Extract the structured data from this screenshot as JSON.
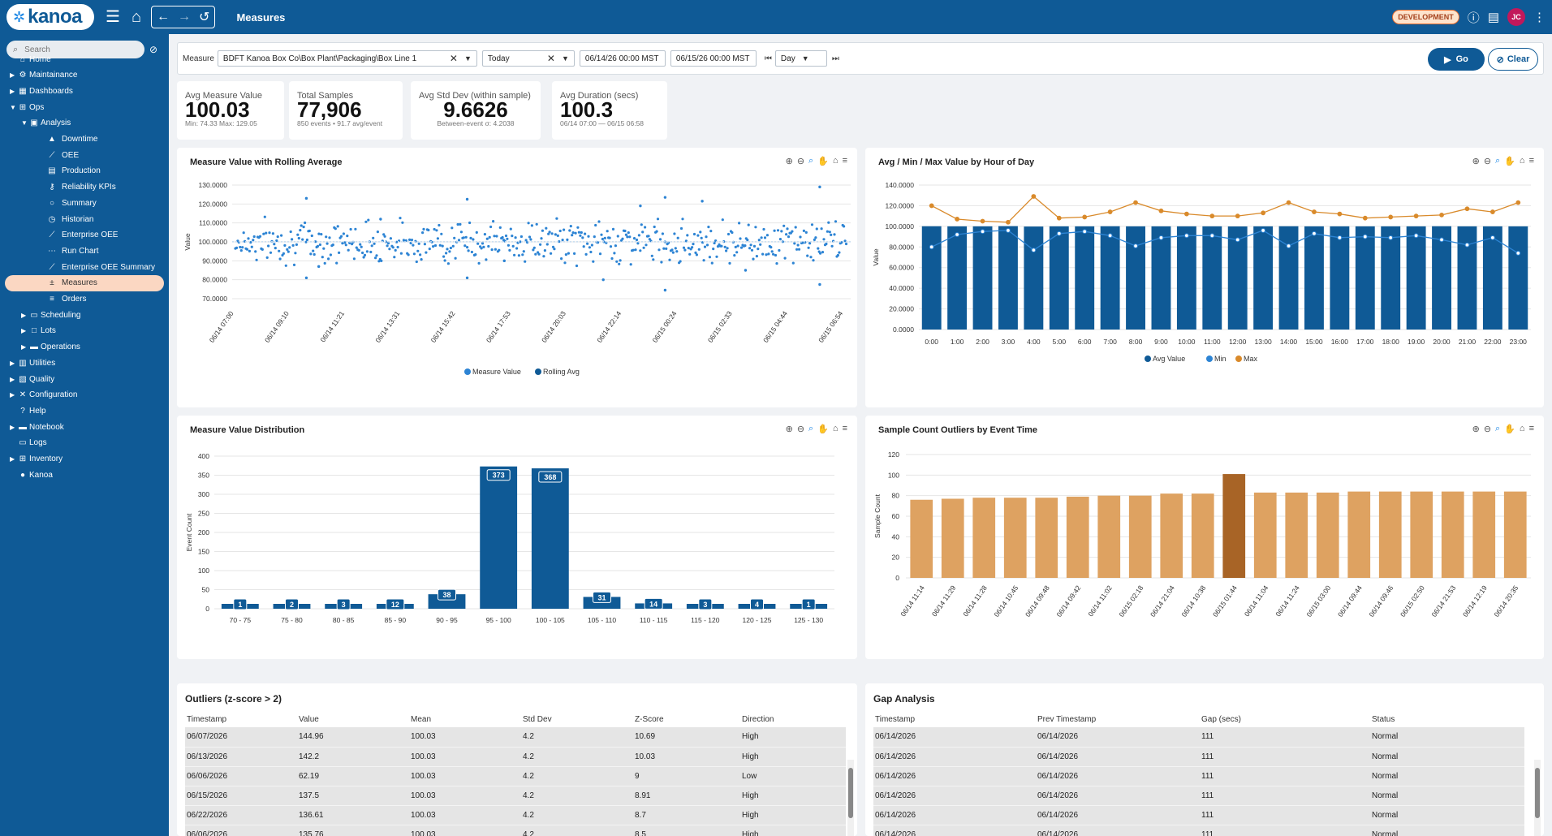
{
  "app": {
    "logo_text": "kanoa",
    "page_title": "Measures",
    "env_badge": "DEVELOPMENT",
    "user_initials": "JC"
  },
  "colors": {
    "primary": "#0f5a96",
    "accent": "#e36b2f",
    "active_nav": "#fbd7c2",
    "bar_orange": "#dea261",
    "bar_orange_dark": "#a86426",
    "scatter_blue": "#2d84d4"
  },
  "sidebar": {
    "search_placeholder": "Search",
    "items": [
      {
        "label": "Home",
        "icon": "home-icon",
        "level": 0,
        "caret": false
      },
      {
        "label": "Maintainance",
        "icon": "gear-icon",
        "level": 0,
        "caret": true
      },
      {
        "label": "Dashboards",
        "icon": "dashboard-icon",
        "level": 0,
        "caret": true
      },
      {
        "label": "Ops",
        "icon": "ops-icon",
        "level": 0,
        "caret": true,
        "open": true
      },
      {
        "label": "Analysis",
        "icon": "analysis-icon",
        "level": 1,
        "caret": true,
        "open": true
      },
      {
        "label": "Downtime",
        "icon": "warning-icon",
        "level": 2,
        "caret": false
      },
      {
        "label": "OEE",
        "icon": "line-chart-icon",
        "level": 2,
        "caret": false
      },
      {
        "label": "Production",
        "icon": "production-icon",
        "level": 2,
        "caret": false
      },
      {
        "label": "Reliability KPIs",
        "icon": "key-icon",
        "level": 2,
        "caret": false
      },
      {
        "label": "Summary",
        "icon": "circle-icon",
        "level": 2,
        "caret": false
      },
      {
        "label": "Historian",
        "icon": "clock-icon",
        "level": 2,
        "caret": false
      },
      {
        "label": "Enterprise OEE",
        "icon": "line-chart-icon",
        "level": 2,
        "caret": false
      },
      {
        "label": "Run Chart",
        "icon": "dots-icon",
        "level": 2,
        "caret": false
      },
      {
        "label": "Enterprise OEE Summary",
        "icon": "line-chart-icon",
        "level": 2,
        "caret": false
      },
      {
        "label": "Measures",
        "icon": "plus-minus-icon",
        "level": 2,
        "caret": false,
        "active": true
      },
      {
        "label": "Orders",
        "icon": "orders-icon",
        "level": 2,
        "caret": false
      },
      {
        "label": "Scheduling",
        "icon": "calendar-icon",
        "level": 1,
        "caret": true
      },
      {
        "label": "Lots",
        "icon": "box-icon",
        "level": 1,
        "caret": true
      },
      {
        "label": "Operations",
        "icon": "folder-icon",
        "level": 1,
        "caret": true
      },
      {
        "label": "Utilities",
        "icon": "utilities-icon",
        "level": 0,
        "caret": true
      },
      {
        "label": "Quality",
        "icon": "quality-icon",
        "level": 0,
        "caret": true
      },
      {
        "label": "Configuration",
        "icon": "wrench-icon",
        "level": 0,
        "caret": true
      },
      {
        "label": "Help",
        "icon": "help-icon",
        "level": 0,
        "caret": false
      },
      {
        "label": "Notebook",
        "icon": "folder-icon",
        "level": 0,
        "caret": true
      },
      {
        "label": "Logs",
        "icon": "logs-icon",
        "level": 0,
        "caret": false
      },
      {
        "label": "Inventory",
        "icon": "grid-icon",
        "level": 0,
        "caret": true
      },
      {
        "label": "Kanoa",
        "icon": "globe-icon",
        "level": 0,
        "caret": false
      }
    ]
  },
  "filters": {
    "measure_label": "Measure",
    "measure_value": "BDFT Kanoa Box Co\\Box Plant\\Packaging\\Box Line 1",
    "range_value": "Today",
    "start": "06/14/26 00:00 MST",
    "end": "06/15/26 00:00 MST",
    "interval": "Day",
    "go_label": "Go",
    "clear_label": "Clear"
  },
  "kpis": [
    {
      "label": "Avg Measure Value",
      "value": "100.03",
      "sub": "Min: 74.33 Max: 129.05"
    },
    {
      "label": "Total Samples",
      "value": "77,906",
      "sub": "850 events • 91.7 avg/event"
    },
    {
      "label": "Avg Std Dev (within sample)",
      "value": "9.6626",
      "sub": "Between-event σ: 4.2038"
    },
    {
      "label": "Avg Duration (secs)",
      "value": "100.3",
      "sub": "06/14 07:00 — 06/15 06:58"
    }
  ],
  "charts": [
    {
      "title": "Measure Value with Rolling Average",
      "chart_data": {
        "type": "scatter",
        "ylabel": "Value",
        "ylim": [
          70,
          130
        ],
        "yticks": [
          "130.0000",
          "120.0000",
          "110.0000",
          "100.0000",
          "90.0000",
          "80.0000",
          "70.0000"
        ],
        "x_ticks": [
          "06/14 07:00",
          "06/14 09:10",
          "06/14 11:21",
          "06/14 13:31",
          "06/14 15:42",
          "06/14 17:53",
          "06/14 20:03",
          "06/14 22:14",
          "06/15 00:24",
          "06/15 02:33",
          "06/15 04:44",
          "06/15 06:54"
        ],
        "series": [
          {
            "name": "Measure Value",
            "mean": 100.03,
            "std": 4.2
          },
          {
            "name": "Rolling Avg",
            "value": 100.03
          }
        ],
        "outliers": [
          {
            "x": 0.12,
            "y": 123
          },
          {
            "x": 0.12,
            "y": 81
          },
          {
            "x": 0.24,
            "y": 112
          },
          {
            "x": 0.38,
            "y": 122.5
          },
          {
            "x": 0.38,
            "y": 81
          },
          {
            "x": 0.66,
            "y": 119
          },
          {
            "x": 0.7,
            "y": 123.5
          },
          {
            "x": 0.7,
            "y": 74.5
          },
          {
            "x": 0.76,
            "y": 121.5
          },
          {
            "x": 0.6,
            "y": 80
          },
          {
            "x": 0.95,
            "y": 129
          },
          {
            "x": 0.95,
            "y": 77.5
          },
          {
            "x": 0.14,
            "y": 87
          },
          {
            "x": 0.44,
            "y": 90
          },
          {
            "x": 0.83,
            "y": 85
          }
        ],
        "legend": "bottom"
      }
    },
    {
      "title": "Avg / Min / Max Value by Hour of Day",
      "chart_data": {
        "type": "bar",
        "ylabel": "Value",
        "ylim": [
          0,
          140
        ],
        "yticks": [
          "140.0000",
          "120.0000",
          "100.0000",
          "80.0000",
          "60.0000",
          "40.0000",
          "20.0000",
          "0.0000"
        ],
        "categories": [
          "0:00",
          "1:00",
          "2:00",
          "3:00",
          "4:00",
          "5:00",
          "6:00",
          "7:00",
          "8:00",
          "9:00",
          "10:00",
          "11:00",
          "12:00",
          "13:00",
          "14:00",
          "15:00",
          "16:00",
          "17:00",
          "18:00",
          "19:00",
          "20:00",
          "21:00",
          "22:00",
          "23:00"
        ],
        "series": [
          {
            "name": "Avg Value",
            "values": [
              100.1,
              100,
              100,
              100.2,
              99.8,
              100,
              100,
              100.1,
              100,
              100,
              100,
              100,
              99.9,
              100,
              100.1,
              100,
              100,
              100,
              100,
              100,
              100.1,
              100,
              100,
              100
            ]
          },
          {
            "name": "Min",
            "values": [
              80,
              92,
              95,
              96,
              77,
              93,
              95,
              91,
              81,
              89,
              91,
              91,
              87,
              96,
              81,
              93,
              89,
              90,
              89,
              91,
              87,
              82,
              89,
              74
            ]
          },
          {
            "name": "Max",
            "values": [
              120,
              107,
              105,
              104,
              129,
              108,
              109,
              114,
              123,
              115,
              112,
              110,
              110,
              113,
              123,
              114,
              112,
              108,
              109,
              110,
              111,
              117,
              114,
              123
            ]
          }
        ],
        "legend": "bottom"
      }
    },
    {
      "title": "Measure Value Distribution",
      "chart_data": {
        "type": "bar",
        "ylabel": "Event Count",
        "ylim": [
          0,
          400
        ],
        "yticks": [
          "400",
          "350",
          "300",
          "250",
          "200",
          "150",
          "100",
          "50",
          "0"
        ],
        "categories": [
          "70 - 75",
          "75 - 80",
          "80 - 85",
          "85 - 90",
          "90 - 95",
          "95 - 100",
          "100 - 105",
          "105 - 110",
          "110 - 115",
          "115 - 120",
          "120 - 125",
          "125 - 130"
        ],
        "values": [
          1,
          2,
          3,
          12,
          38,
          373,
          368,
          31,
          14,
          3,
          4,
          1
        ]
      }
    },
    {
      "title": "Sample Count Outliers by Event Time",
      "chart_data": {
        "type": "bar",
        "ylabel": "Sample Count",
        "ylim": [
          0,
          120
        ],
        "yticks": [
          "120",
          "100",
          "80",
          "60",
          "40",
          "20",
          "0"
        ],
        "categories": [
          "06/14 11:14",
          "06/14 11:29",
          "06/14 11:28",
          "06/14 10:45",
          "06/14 09:48",
          "06/14 09:42",
          "06/14 11:02",
          "06/15 02:18",
          "06/14 21:04",
          "06/14 10:38",
          "06/15 01:44",
          "06/14 11:04",
          "06/14 11:24",
          "06/15 03:00",
          "06/14 09:44",
          "06/14 09:46",
          "06/15 02:50",
          "06/14 21:53",
          "06/14 12:19",
          "06/14 20:35"
        ],
        "values": [
          76,
          77,
          78,
          78,
          78,
          79,
          80,
          80,
          82,
          82,
          101,
          83,
          83,
          83,
          84,
          84,
          84,
          84,
          84,
          84
        ],
        "highlight_index": 10
      }
    }
  ],
  "outliers_table": {
    "title": "Outliers (z-score > 2)",
    "headers": [
      "Timestamp",
      "Value",
      "Mean",
      "Std Dev",
      "Z-Score",
      "Direction"
    ],
    "rows": [
      [
        "06/07/2026",
        "144.96",
        "100.03",
        "4.2",
        "10.69",
        "High"
      ],
      [
        "06/13/2026",
        "142.2",
        "100.03",
        "4.2",
        "10.03",
        "High"
      ],
      [
        "06/06/2026",
        "62.19",
        "100.03",
        "4.2",
        "9",
        "Low"
      ],
      [
        "06/15/2026",
        "137.5",
        "100.03",
        "4.2",
        "8.91",
        "High"
      ],
      [
        "06/22/2026",
        "136.61",
        "100.03",
        "4.2",
        "8.7",
        "High"
      ],
      [
        "06/06/2026",
        "135.76",
        "100.03",
        "4.2",
        "8.5",
        "High"
      ]
    ]
  },
  "gap_table": {
    "title": "Gap Analysis",
    "headers": [
      "Timestamp",
      "Prev Timestamp",
      "Gap (secs)",
      "Status"
    ],
    "rows": [
      [
        "06/14/2026",
        "06/14/2026",
        "111",
        "Normal"
      ],
      [
        "06/14/2026",
        "06/14/2026",
        "111",
        "Normal"
      ],
      [
        "06/14/2026",
        "06/14/2026",
        "111",
        "Normal"
      ],
      [
        "06/14/2026",
        "06/14/2026",
        "111",
        "Normal"
      ],
      [
        "06/14/2026",
        "06/14/2026",
        "111",
        "Normal"
      ],
      [
        "06/14/2026",
        "06/14/2026",
        "111",
        "Normal"
      ]
    ]
  }
}
